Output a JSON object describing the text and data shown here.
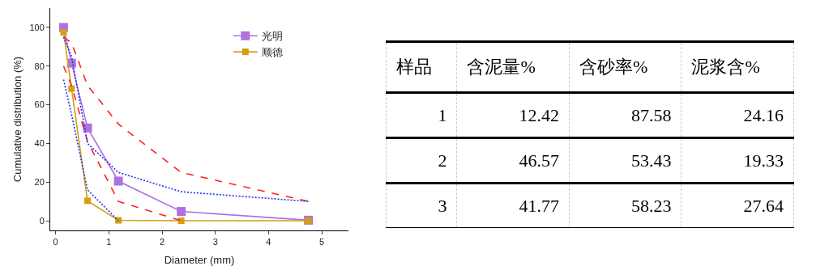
{
  "chart_data": [
    {
      "type": "line",
      "xlabel": "Diameter (mm)",
      "ylabel": "Cumulative distribution (%)",
      "x": [
        0.15,
        0.3,
        0.6,
        1.18,
        2.36,
        4.75
      ],
      "series": [
        {
          "name": "光明",
          "color": "#b070e0",
          "values": [
            100,
            81.5,
            48,
            20.5,
            4.8,
            0.3
          ],
          "marker": "square",
          "line_style": "solid"
        },
        {
          "name": "顺德",
          "color": "#d4a010",
          "values": [
            97.5,
            68.3,
            10.3,
            0.2,
            0,
            0
          ],
          "marker": "square",
          "line_style": "solid"
        },
        {
          "color": "#ff2020",
          "values": [
            95,
            92,
            70,
            50,
            25,
            10
          ],
          "marker": "none",
          "line_style": "dashed"
        },
        {
          "color": "#ff2020",
          "values": [
            80,
            70,
            41,
            10,
            0,
            null
          ],
          "marker": "none",
          "line_style": "dashed"
        },
        {
          "color": "#2030ff",
          "values": [
            95,
            85,
            40,
            25,
            15,
            10
          ],
          "marker": "none",
          "line_style": "dotted"
        },
        {
          "color": "#2030ff",
          "values": [
            73,
            55,
            16,
            0,
            null,
            null
          ],
          "marker": "none",
          "line_style": "dotted"
        }
      ],
      "xlim": [
        -0.1,
        5.5
      ],
      "ylim": [
        -5,
        110
      ],
      "xticks": [
        0,
        1,
        2,
        3,
        4,
        5
      ],
      "yticks": [
        0,
        20,
        40,
        60,
        80,
        100
      ],
      "grid": false,
      "legend": "top right"
    },
    {
      "type": "other",
      "xlabel": "样品",
      "categories": [
        "1",
        "2",
        "3"
      ],
      "data_labels": true,
      "series": [
        {
          "name": "含泥量%",
          "values": [
            12.42,
            46.57,
            41.77
          ]
        },
        {
          "name": "含砂率%",
          "values": [
            87.58,
            53.43,
            58.23
          ]
        },
        {
          "name": "泥浆含%",
          "values": [
            24.16,
            19.33,
            27.64
          ]
        }
      ]
    }
  ]
}
